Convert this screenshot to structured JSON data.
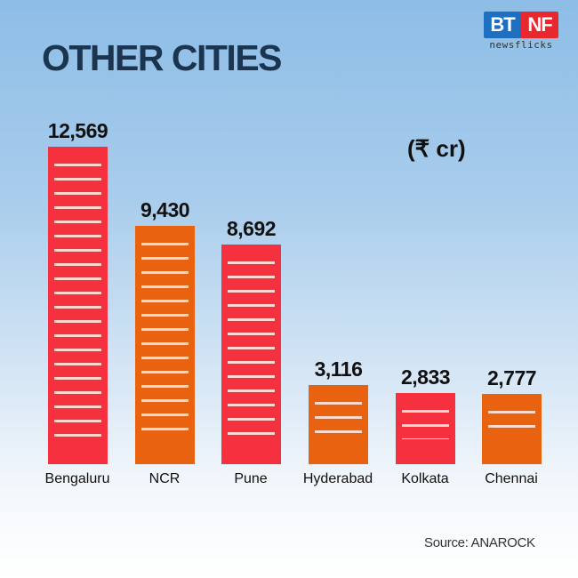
{
  "header": {
    "title": "OTHER CITIES",
    "logo_left": "BT",
    "logo_right": "NF",
    "logo_sub": "newsflicks"
  },
  "unit_label": "(₹ cr)",
  "source": "Source: ANAROCK",
  "colors": {
    "red": "#f5303f",
    "orange": "#e8620f",
    "title": "#1b3550"
  },
  "chart_data": {
    "type": "bar",
    "title": "OTHER CITIES",
    "categories": [
      "Bengaluru",
      "NCR",
      "Pune",
      "Hyderabad",
      "Kolkata",
      "Chennai"
    ],
    "values": [
      12569,
      9430,
      8692,
      3116,
      2833,
      2777
    ],
    "value_labels": [
      "12,569",
      "9,430",
      "8,692",
      "3,116",
      "2,833",
      "2,777"
    ],
    "bar_colors": [
      "#f5303f",
      "#e8620f",
      "#f5303f",
      "#e8620f",
      "#f5303f",
      "#e8620f"
    ],
    "xlabel": "",
    "ylabel": "₹ cr",
    "grid": false,
    "legend": null,
    "annotations": [
      "(₹ cr)",
      "Source: ANAROCK"
    ]
  }
}
